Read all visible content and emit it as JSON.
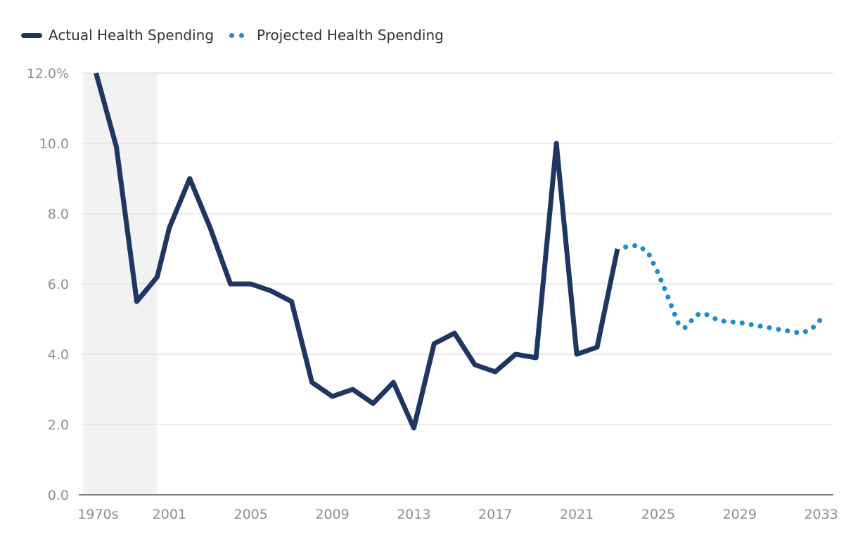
{
  "chart_data": {
    "type": "line",
    "title": "",
    "xlabel": "",
    "ylabel": "",
    "ylim": [
      0,
      12
    ],
    "y_ticks": [
      0,
      2,
      4,
      6,
      8,
      10,
      12
    ],
    "y_tick_labels": [
      "0.0",
      "2.0",
      "4.0",
      "6.0",
      "8.0",
      "10.0",
      "12.0%"
    ],
    "x_tick_labels": [
      "1970s",
      "2001",
      "2005",
      "2009",
      "2013",
      "2017",
      "2021",
      "2025",
      "2029",
      "2033"
    ],
    "x_tick_positions": [
      0.5,
      4,
      8,
      12,
      16,
      20,
      24,
      28,
      32,
      36
    ],
    "shaded_band": {
      "x_start": 0,
      "x_end": 3.4,
      "label": ""
    },
    "grid": true,
    "legend_position": "top-left",
    "series": [
      {
        "name": "Actual Health Spending",
        "style": "solid",
        "color": "#1f3564",
        "points": [
          [
            0.4,
            12.0
          ],
          [
            1.4,
            9.9
          ],
          [
            2.4,
            5.5
          ],
          [
            3.4,
            6.2
          ],
          [
            4,
            7.6
          ],
          [
            5,
            9.0
          ],
          [
            6,
            7.6
          ],
          [
            7,
            6.0
          ],
          [
            8,
            6.0
          ],
          [
            9,
            5.8
          ],
          [
            10,
            5.5
          ],
          [
            11,
            3.2
          ],
          [
            12,
            2.8
          ],
          [
            13,
            3.0
          ],
          [
            14,
            2.6
          ],
          [
            15,
            3.2
          ],
          [
            16,
            1.9
          ],
          [
            17,
            4.3
          ],
          [
            18,
            4.6
          ],
          [
            19,
            3.7
          ],
          [
            20,
            3.5
          ],
          [
            21,
            4.0
          ],
          [
            22,
            3.9
          ],
          [
            23,
            10.0
          ],
          [
            24,
            4.0
          ],
          [
            25,
            4.2
          ],
          [
            26,
            7.0
          ]
        ]
      },
      {
        "name": "Projected Health Spending",
        "style": "dotted",
        "color": "#1f8bcb",
        "points": [
          [
            26.4,
            7.05
          ],
          [
            27,
            7.1
          ],
          [
            27.5,
            6.9
          ],
          [
            28,
            6.3
          ],
          [
            28.5,
            5.6
          ],
          [
            29,
            4.85
          ],
          [
            29.3,
            4.75
          ],
          [
            29.7,
            5.0
          ],
          [
            30,
            5.15
          ],
          [
            30.3,
            5.15
          ],
          [
            31,
            4.95
          ],
          [
            32,
            4.9
          ],
          [
            33,
            4.8
          ],
          [
            34,
            4.7
          ],
          [
            35,
            4.6
          ],
          [
            35.5,
            4.7
          ],
          [
            36,
            5.0
          ]
        ]
      }
    ]
  }
}
